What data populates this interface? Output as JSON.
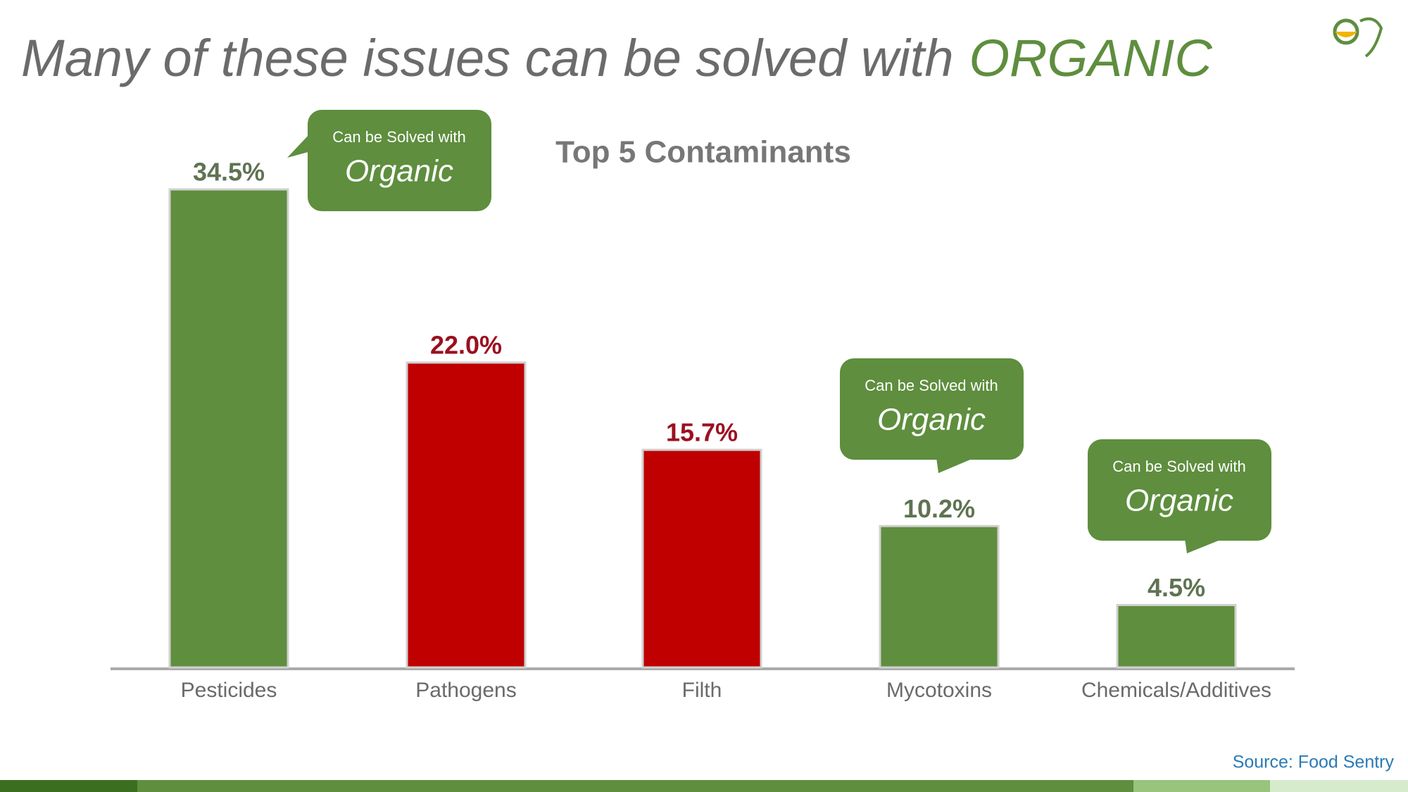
{
  "header": {
    "title": "Many of these issues can be solved with",
    "title_emphasis": "ORGANIC"
  },
  "chart_data": {
    "type": "bar",
    "title": "Top 5 Contaminants",
    "categories": [
      "Pesticides",
      "Pathogens",
      "Filth",
      "Mycotoxins",
      "Chemicals/Additives"
    ],
    "values": [
      34.5,
      22.0,
      15.7,
      10.2,
      4.5
    ],
    "value_labels": [
      "34.5%",
      "22.0%",
      "15.7%",
      "10.2%",
      "4.5%"
    ],
    "colors": [
      "#5e8e3e",
      "#c00000",
      "#c00000",
      "#5e8e3e",
      "#5e8e3e"
    ],
    "label_colors": [
      "#5f7352",
      "#9b1020",
      "#9b1020",
      "#5f7352",
      "#5f7352"
    ],
    "grid": false
  },
  "callouts": [
    {
      "text": "Can be Solved with",
      "emphasis": "Organic"
    },
    {
      "text": "Can be Solved with",
      "emphasis": "Organic"
    },
    {
      "text": "Can be Solved with",
      "emphasis": "Organic"
    }
  ],
  "footer": {
    "source": "Source: Food Sentry"
  }
}
